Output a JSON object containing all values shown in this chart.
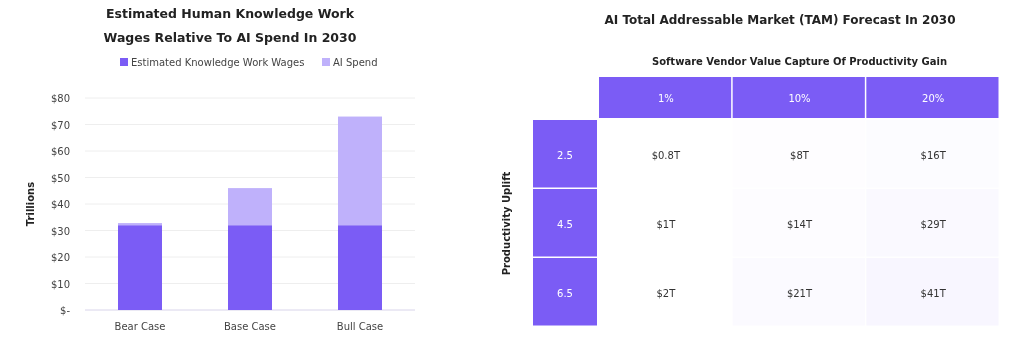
{
  "chart_data": [
    {
      "type": "bar",
      "title": "Estimated Human Knowledge Work Wages Relative To AI Spend In 2030",
      "ylabel": "Trillions",
      "categories": [
        "Bear Case",
        "Base Case",
        "Bull Case"
      ],
      "stacked": true,
      "series": [
        {
          "name": "Estimated Knowledge Work Wages",
          "color": "#7b5cf5",
          "values": [
            32,
            32,
            32
          ]
        },
        {
          "name": "AI Spend",
          "color": "#bfb1fb",
          "values": [
            0.8,
            14,
            41
          ]
        }
      ],
      "ylim": [
        0,
        80
      ],
      "yticks": [
        {
          "value": 0,
          "label": "$-"
        },
        {
          "value": 10,
          "label": "$10"
        },
        {
          "value": 20,
          "label": "$20"
        },
        {
          "value": 30,
          "label": "$30"
        },
        {
          "value": 40,
          "label": "$40"
        },
        {
          "value": 50,
          "label": "$50"
        },
        {
          "value": 60,
          "label": "$60"
        },
        {
          "value": 70,
          "label": "$70"
        },
        {
          "value": 80,
          "label": "$80"
        }
      ],
      "grid": "y",
      "legend": "top"
    },
    {
      "type": "heatmap",
      "title": "AI Total Addressable Market (TAM) Forecast In 2030",
      "xlabel": "Software Vendor Value Capture Of Productivity Gain",
      "ylabel": "Productivity Uplift",
      "categories": [
        "1%",
        "10%",
        "20%"
      ],
      "y_categories": [
        "2.5",
        "4.5",
        "6.5"
      ],
      "cells": [
        [
          0.8,
          8,
          16
        ],
        [
          1,
          14,
          29
        ],
        [
          2,
          21,
          41
        ]
      ],
      "cell_labels": [
        [
          "$0.8T",
          "$8T",
          "$16T"
        ],
        [
          "$1T",
          "$14T",
          "$29T"
        ],
        [
          "$2T",
          "$21T",
          "$41T"
        ]
      ]
    }
  ]
}
